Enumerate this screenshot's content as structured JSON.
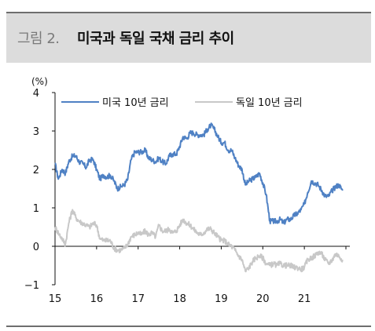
{
  "figure": {
    "label": "그림 2.",
    "title": "미국과 독일 국채 금리 추이"
  },
  "chart_data": {
    "type": "line",
    "unit": "(%)",
    "ylim": [
      -1,
      4
    ],
    "yticks": [
      "4",
      "3",
      "2",
      "1",
      "0",
      "−1"
    ],
    "yticks_values": [
      4,
      3,
      2,
      1,
      0,
      -1
    ],
    "xlim": [
      2015.0,
      2022.0
    ],
    "xticks": [
      "15",
      "16",
      "17",
      "18",
      "19",
      "20",
      "21"
    ],
    "xticks_values": [
      2015,
      2016,
      2017,
      2018,
      2019,
      2020,
      2021
    ],
    "legend_position": "top-center",
    "series": [
      {
        "name": "미국 10년 금리",
        "color": "#4f81c4",
        "x": [
          2015.0,
          2015.08,
          2015.17,
          2015.25,
          2015.33,
          2015.42,
          2015.5,
          2015.58,
          2015.67,
          2015.75,
          2015.83,
          2015.92,
          2016.0,
          2016.08,
          2016.17,
          2016.25,
          2016.33,
          2016.42,
          2016.5,
          2016.58,
          2016.67,
          2016.75,
          2016.83,
          2016.92,
          2017.0,
          2017.08,
          2017.17,
          2017.25,
          2017.33,
          2017.42,
          2017.5,
          2017.58,
          2017.67,
          2017.75,
          2017.83,
          2017.92,
          2018.0,
          2018.08,
          2018.17,
          2018.25,
          2018.33,
          2018.42,
          2018.5,
          2018.58,
          2018.67,
          2018.75,
          2018.83,
          2018.92,
          2019.0,
          2019.08,
          2019.17,
          2019.25,
          2019.33,
          2019.42,
          2019.5,
          2019.58,
          2019.67,
          2019.75,
          2019.83,
          2019.92,
          2020.0,
          2020.08,
          2020.17,
          2020.25,
          2020.33,
          2020.42,
          2020.5,
          2020.58,
          2020.67,
          2020.75,
          2020.83,
          2020.92,
          2021.0,
          2021.08,
          2021.17,
          2021.25,
          2021.33,
          2021.42,
          2021.5,
          2021.58,
          2021.67,
          2021.75,
          2021.83,
          2021.92
        ],
        "y": [
          2.15,
          1.75,
          2.0,
          1.9,
          2.2,
          2.35,
          2.35,
          2.2,
          2.15,
          2.05,
          2.25,
          2.25,
          2.0,
          1.75,
          1.85,
          1.8,
          1.85,
          1.7,
          1.5,
          1.55,
          1.6,
          1.75,
          2.25,
          2.45,
          2.45,
          2.45,
          2.5,
          2.3,
          2.25,
          2.2,
          2.3,
          2.2,
          2.15,
          2.35,
          2.4,
          2.4,
          2.6,
          2.85,
          2.8,
          2.95,
          2.95,
          2.9,
          2.9,
          2.9,
          3.05,
          3.15,
          3.05,
          2.85,
          2.7,
          2.7,
          2.5,
          2.5,
          2.3,
          2.1,
          2.0,
          1.6,
          1.7,
          1.75,
          1.8,
          1.9,
          1.65,
          1.35,
          0.65,
          0.65,
          0.65,
          0.7,
          0.6,
          0.7,
          0.7,
          0.8,
          0.85,
          0.95,
          1.1,
          1.4,
          1.7,
          1.65,
          1.6,
          1.45,
          1.3,
          1.3,
          1.45,
          1.55,
          1.6,
          1.45
        ]
      },
      {
        "name": "독일 10년 금리",
        "color": "#c8c8c8",
        "x": [
          2015.0,
          2015.08,
          2015.17,
          2015.25,
          2015.33,
          2015.42,
          2015.5,
          2015.58,
          2015.67,
          2015.75,
          2015.83,
          2015.92,
          2016.0,
          2016.08,
          2016.17,
          2016.25,
          2016.33,
          2016.42,
          2016.5,
          2016.58,
          2016.67,
          2016.75,
          2016.83,
          2016.92,
          2017.0,
          2017.08,
          2017.17,
          2017.25,
          2017.33,
          2017.42,
          2017.5,
          2017.58,
          2017.67,
          2017.75,
          2017.83,
          2017.92,
          2018.0,
          2018.08,
          2018.17,
          2018.25,
          2018.33,
          2018.42,
          2018.5,
          2018.58,
          2018.67,
          2018.75,
          2018.83,
          2018.92,
          2019.0,
          2019.08,
          2019.17,
          2019.25,
          2019.33,
          2019.42,
          2019.5,
          2019.58,
          2019.67,
          2019.75,
          2019.83,
          2019.92,
          2020.0,
          2020.08,
          2020.17,
          2020.25,
          2020.33,
          2020.42,
          2020.5,
          2020.58,
          2020.67,
          2020.75,
          2020.83,
          2020.92,
          2021.0,
          2021.08,
          2021.17,
          2021.25,
          2021.33,
          2021.42,
          2021.5,
          2021.58,
          2021.67,
          2021.75,
          2021.83,
          2021.92
        ],
        "y": [
          0.5,
          0.35,
          0.2,
          0.05,
          0.6,
          0.95,
          0.75,
          0.65,
          0.6,
          0.55,
          0.5,
          0.6,
          0.55,
          0.2,
          0.15,
          0.15,
          0.15,
          -0.05,
          -0.1,
          -0.1,
          -0.05,
          0.05,
          0.25,
          0.3,
          0.35,
          0.3,
          0.4,
          0.3,
          0.35,
          0.25,
          0.55,
          0.4,
          0.4,
          0.45,
          0.35,
          0.4,
          0.55,
          0.7,
          0.6,
          0.55,
          0.45,
          0.35,
          0.3,
          0.35,
          0.45,
          0.45,
          0.35,
          0.25,
          0.15,
          0.15,
          0.05,
          0.0,
          -0.1,
          -0.25,
          -0.35,
          -0.65,
          -0.55,
          -0.4,
          -0.3,
          -0.25,
          -0.3,
          -0.45,
          -0.5,
          -0.45,
          -0.5,
          -0.45,
          -0.5,
          -0.5,
          -0.5,
          -0.55,
          -0.55,
          -0.6,
          -0.55,
          -0.35,
          -0.3,
          -0.25,
          -0.15,
          -0.2,
          -0.35,
          -0.45,
          -0.35,
          -0.2,
          -0.25,
          -0.35
        ]
      }
    ]
  }
}
